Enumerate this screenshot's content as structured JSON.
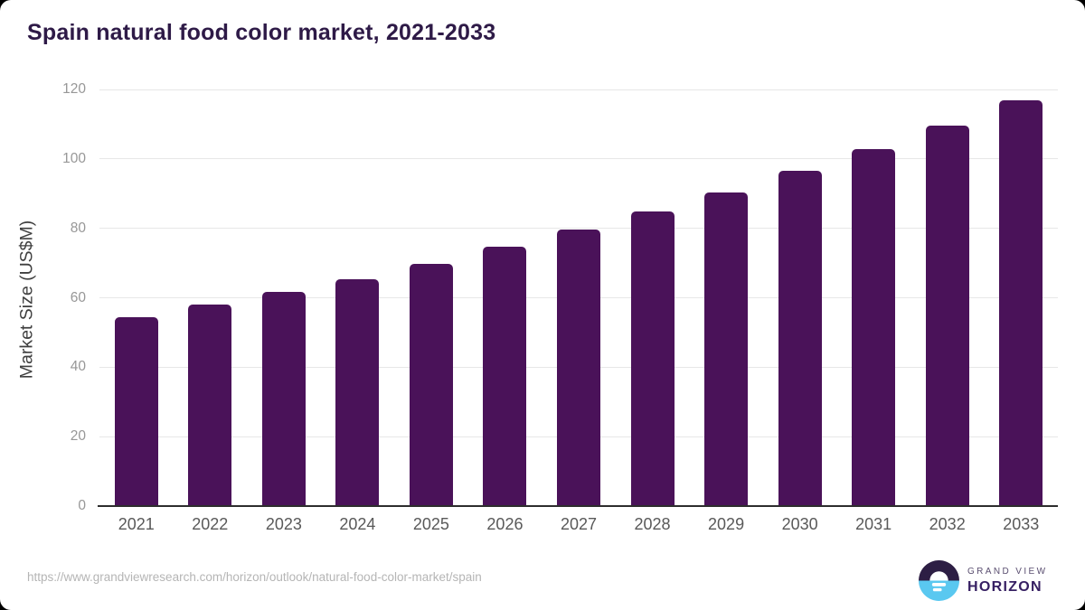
{
  "title": "Spain natural food color market, 2021-2033",
  "chart_data": {
    "type": "bar",
    "title": "Spain natural food color market, 2021-2033",
    "categories": [
      "2021",
      "2022",
      "2023",
      "2024",
      "2025",
      "2026",
      "2027",
      "2028",
      "2029",
      "2030",
      "2031",
      "2032",
      "2033"
    ],
    "values": [
      54.4,
      58.1,
      61.6,
      65.4,
      69.8,
      74.7,
      79.6,
      84.9,
      90.4,
      96.5,
      102.9,
      109.5,
      116.8
    ],
    "xlabel": "",
    "ylabel": "Market Size (US$M)",
    "ylim": [
      0,
      120
    ],
    "yticks": [
      0,
      20,
      40,
      60,
      80,
      100,
      120
    ],
    "grid": true,
    "legend": "none",
    "bar_color": "#4a1259"
  },
  "colors": {
    "accent_bar": "#4a1259",
    "title_text": "#2e1a47",
    "gridline": "#e7e7e7",
    "axis_line": "#2d2d2d",
    "y_tick_text": "#979797",
    "x_tick_text": "#595959",
    "axis_title_text": "#3f3f3f",
    "footer_url_text": "#b5b5b5",
    "logo_dark_purple": "#2d1e44",
    "logo_light_blue": "#5ac8f0"
  },
  "footer": {
    "source_url": "https://www.grandviewresearch.com/horizon/outlook/natural-food-color-market/spain",
    "logo_line1": "GRAND VIEW",
    "logo_line2": "HORIZON"
  }
}
